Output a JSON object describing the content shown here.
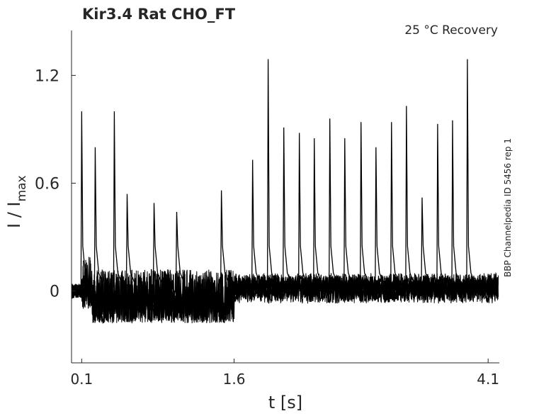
{
  "chart_data": {
    "type": "line",
    "title": "Kir3.4  Rat  CHO_FT",
    "annotation": "25 °C  Recovery",
    "side_label": "BBP Channelpedia ID 5456 rep 1",
    "xlabel": "t [s]",
    "ylabel_main": "I / I",
    "ylabel_sub": "max",
    "xlim": [
      0.0,
      4.21
    ],
    "ylim": [
      -0.4,
      1.45
    ],
    "xticks": [
      0.1,
      1.6,
      4.1
    ],
    "xtick_labels": [
      "0.1",
      "1.6",
      "4.1"
    ],
    "yticks": [
      0,
      0.6,
      1.2
    ],
    "ytick_labels": [
      "0",
      "0.6",
      "1.2"
    ],
    "grid": false,
    "line_color": "#000000",
    "baseline_phase1": {
      "t_start": 0.1,
      "t_end": 1.6,
      "low": -0.18,
      "high": 0.12
    },
    "baseline_phase2": {
      "t_start": 1.6,
      "t_end": 4.2,
      "low": -0.05,
      "high": 0.08
    },
    "spikes": [
      {
        "t": 0.1,
        "peak": 1.0
      },
      {
        "t": 0.233,
        "peak": 0.8
      },
      {
        "t": 0.421,
        "peak": 1.0
      },
      {
        "t": 0.547,
        "peak": 0.54
      },
      {
        "t": 0.812,
        "peak": 0.49
      },
      {
        "t": 1.035,
        "peak": 0.44
      },
      {
        "t": 1.475,
        "peak": 0.56
      },
      {
        "t": 1.782,
        "peak": 0.73
      },
      {
        "t": 1.935,
        "peak": 1.29
      },
      {
        "t": 2.089,
        "peak": 0.91
      },
      {
        "t": 2.242,
        "peak": 0.88
      },
      {
        "t": 2.389,
        "peak": 0.85
      },
      {
        "t": 2.542,
        "peak": 0.96
      },
      {
        "t": 2.689,
        "peak": 0.85
      },
      {
        "t": 2.849,
        "peak": 0.94
      },
      {
        "t": 2.996,
        "peak": 0.8
      },
      {
        "t": 3.149,
        "peak": 0.94
      },
      {
        "t": 3.296,
        "peak": 1.03
      },
      {
        "t": 3.45,
        "peak": 0.52
      },
      {
        "t": 3.603,
        "peak": 0.93
      },
      {
        "t": 3.75,
        "peak": 0.95
      },
      {
        "t": 3.896,
        "peak": 1.29
      }
    ]
  }
}
